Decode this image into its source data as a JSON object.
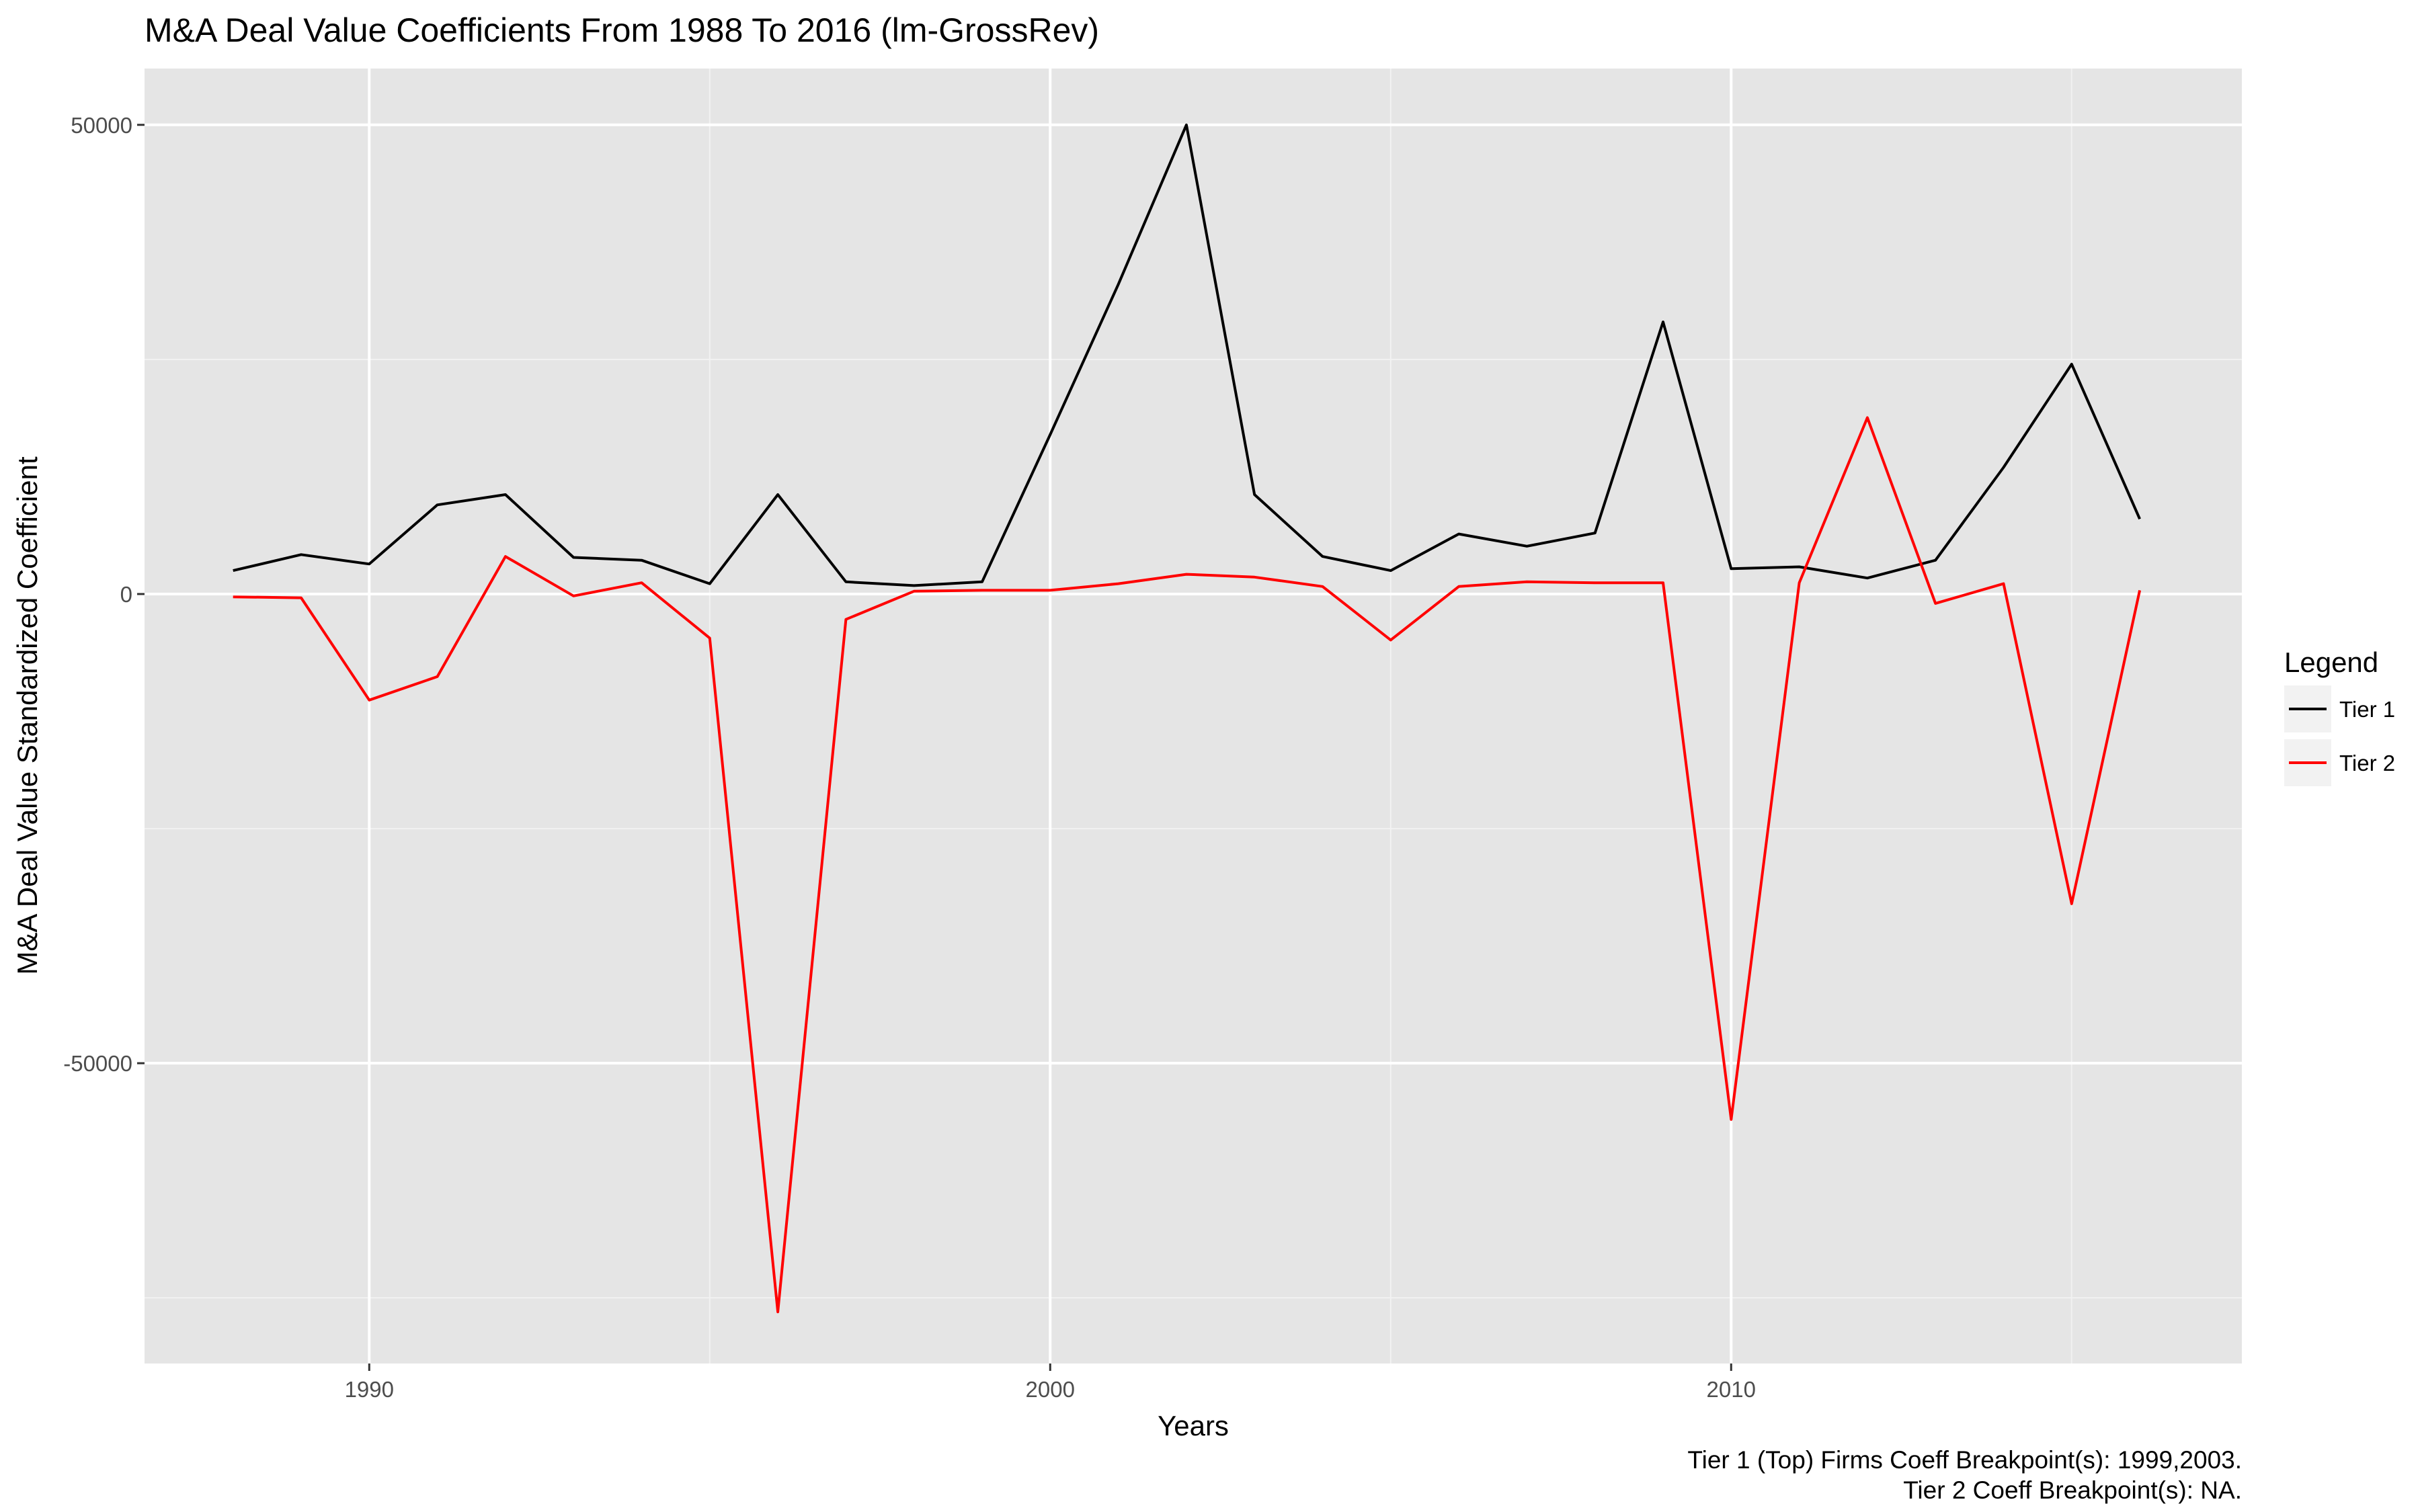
{
  "chart_data": {
    "type": "line",
    "title": "M&A Deal Value Coefficients From 1988 To 2016 (lm-GrossRev)",
    "xlabel": "Years",
    "ylabel": "M&A Deal Value Standardized Coefficient",
    "xlim": [
      1986.7,
      2017.5
    ],
    "ylim": [
      -82000,
      56000
    ],
    "x_ticks": [
      1990,
      2000,
      2010
    ],
    "x_tick_labels": [
      "1990",
      "2000",
      "2010"
    ],
    "x_minor": [
      1995,
      2005,
      2015
    ],
    "y_ticks": [
      50000,
      0,
      -50000
    ],
    "y_tick_labels": [
      "50000",
      "0",
      "-50000"
    ],
    "y_minor": [
      25000,
      -25000,
      -75000
    ],
    "grid": true,
    "panel_background": "#e5e5e5",
    "grid_color": "#ffffff",
    "legend": {
      "title": "Legend",
      "position": "right",
      "entries": [
        "Tier 1",
        "Tier 2"
      ]
    },
    "caption_lines": [
      "Tier 1 (Top) Firms Coeff Breakpoint(s): 1999,2003.",
      "Tier 2 Coeff Breakpoint(s): NA."
    ],
    "x": [
      1988,
      1989,
      1990,
      1991,
      1992,
      1993,
      1994,
      1995,
      1996,
      1997,
      1998,
      1999,
      2000,
      2001,
      2002,
      2003,
      2004,
      2005,
      2006,
      2007,
      2008,
      2009,
      2010,
      2011,
      2012,
      2013,
      2014,
      2015,
      2016
    ],
    "series": [
      {
        "name": "Tier 1",
        "color": "#000000",
        "values": [
          2500,
          4200,
          3200,
          9500,
          10600,
          3900,
          3600,
          1100,
          10600,
          1300,
          900,
          1300,
          17000,
          33000,
          50000,
          10600,
          4000,
          2500,
          6400,
          5100,
          6500,
          29000,
          2700,
          2900,
          1700,
          3600,
          13500,
          24500,
          8000
        ]
      },
      {
        "name": "Tier 2",
        "color": "#ff0000",
        "values": [
          -300,
          -400,
          -11300,
          -8800,
          4000,
          -200,
          1200,
          -4700,
          -76500,
          -2700,
          300,
          400,
          400,
          1100,
          2100,
          1800,
          800,
          -4900,
          800,
          1300,
          1200,
          1200,
          -56000,
          1200,
          18800,
          -1000,
          1100,
          -33000,
          400
        ]
      }
    ]
  }
}
